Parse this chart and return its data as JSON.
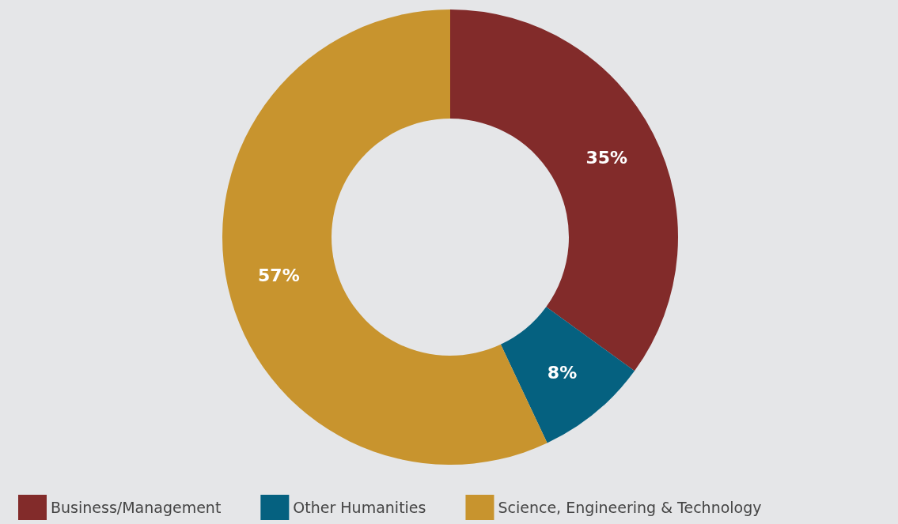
{
  "chart_data": {
    "type": "donut",
    "categories": [
      "Business/Management",
      "Other Humanities",
      "Science, Engineering & Technology"
    ],
    "values": [
      35,
      8,
      57
    ],
    "colors": [
      "#822b2a",
      "#056180",
      "#c8942e"
    ],
    "value_labels": [
      "35%",
      "8%",
      "57%"
    ],
    "legend": "bottom"
  }
}
